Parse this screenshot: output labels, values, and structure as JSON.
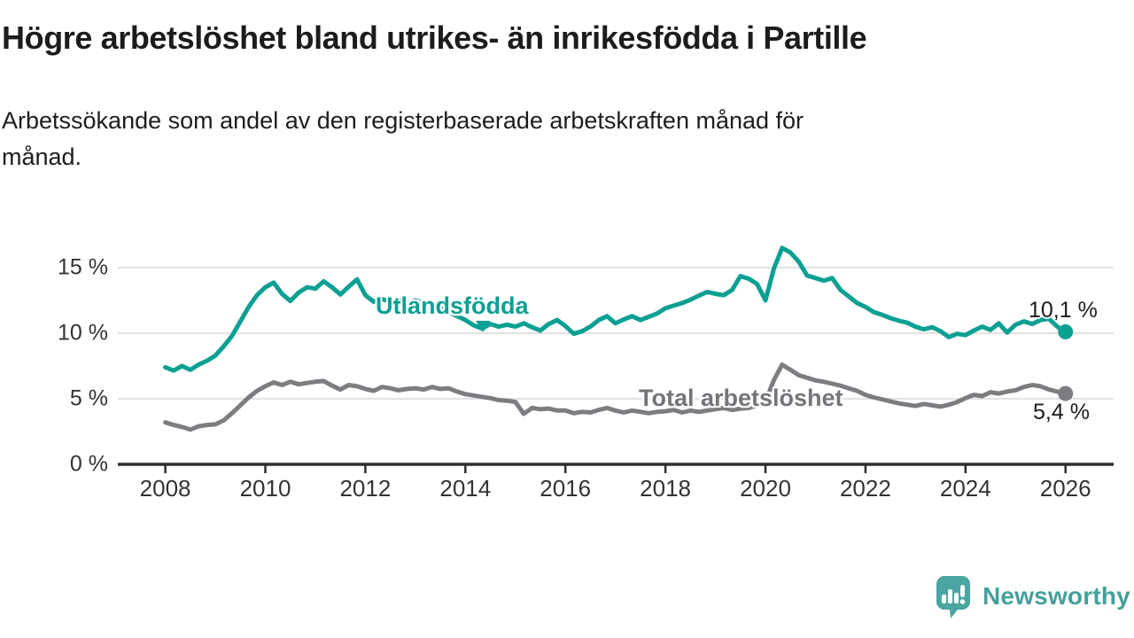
{
  "header": {
    "title": "Högre arbetslöshet bland utrikes- än inrikesfödda i Partille",
    "subtitle_line1": "Arbetssökande som andel av den registerbaserade arbetskraften månad för",
    "subtitle_line2": "månad."
  },
  "footer": {
    "brand": "Newsworthy"
  },
  "chart_data": {
    "type": "line",
    "title": "Högre arbetslöshet bland utrikes- än inrikesfödda i Partille",
    "subtitle": "Arbetssökande som andel av den registerbaserade arbetskraften månad för månad.",
    "x_start_year": 2008,
    "points_per_year": 6,
    "x_tick_years": [
      2008,
      2010,
      2012,
      2014,
      2016,
      2018,
      2020,
      2022,
      2024,
      2026
    ],
    "x_tick_labels": [
      "2008",
      "2010",
      "2012",
      "2014",
      "2016",
      "2018",
      "2020",
      "2022",
      "2024",
      "2026"
    ],
    "y_ticks": [
      0,
      5,
      10,
      15
    ],
    "y_tick_labels": [
      "0 %",
      "5 %",
      "10 %",
      "15 %"
    ],
    "ylim": [
      0,
      17.2
    ],
    "grid": true,
    "legend_position": "inline-labels",
    "axis_color": "#2d2d2d",
    "grid_color": "#d8d8d8",
    "tick_label_color": "#333333",
    "series": [
      {
        "name": "Utlandsfödda",
        "color": "#0ba093",
        "end_label": "10,1 %",
        "end_value": 10.1,
        "values": [
          7.4,
          7.15,
          7.5,
          7.2,
          7.6,
          7.9,
          8.3,
          9.0,
          9.8,
          10.9,
          12.0,
          12.9,
          13.5,
          13.85,
          13.0,
          12.45,
          13.1,
          13.5,
          13.4,
          13.95,
          13.5,
          12.95,
          13.55,
          14.1,
          12.9,
          12.4,
          12.6,
          12.4,
          12.55,
          12.3,
          12.5,
          12.3,
          12.15,
          11.9,
          11.6,
          11.3,
          11.0,
          10.6,
          10.35,
          10.7,
          10.5,
          10.65,
          10.5,
          10.75,
          10.45,
          10.2,
          10.7,
          11.0,
          10.55,
          9.95,
          10.15,
          10.5,
          11.0,
          11.3,
          10.75,
          11.05,
          11.3,
          11.0,
          11.25,
          11.5,
          11.9,
          12.1,
          12.3,
          12.55,
          12.85,
          13.15,
          13.0,
          12.9,
          13.3,
          14.35,
          14.15,
          13.75,
          12.5,
          14.9,
          16.5,
          16.15,
          15.45,
          14.4,
          14.2,
          14.0,
          14.2,
          13.3,
          12.8,
          12.3,
          12.0,
          11.6,
          11.4,
          11.15,
          10.95,
          10.8,
          10.5,
          10.3,
          10.45,
          10.15,
          9.7,
          9.95,
          9.85,
          10.2,
          10.5,
          10.25,
          10.75,
          10.05,
          10.65,
          10.9,
          10.7,
          11.0,
          11.1,
          10.5,
          10.1
        ]
      },
      {
        "name": "Total arbetslöshet",
        "color": "#7e7c81",
        "end_label": "5,4 %",
        "end_value": 5.4,
        "values": [
          3.2,
          3.0,
          2.85,
          2.65,
          2.9,
          3.0,
          3.05,
          3.35,
          3.9,
          4.5,
          5.1,
          5.6,
          5.95,
          6.25,
          6.05,
          6.3,
          6.1,
          6.2,
          6.3,
          6.35,
          6.0,
          5.7,
          6.05,
          5.95,
          5.75,
          5.6,
          5.9,
          5.8,
          5.65,
          5.75,
          5.8,
          5.7,
          5.9,
          5.75,
          5.8,
          5.55,
          5.35,
          5.25,
          5.15,
          5.05,
          4.9,
          4.85,
          4.75,
          3.85,
          4.3,
          4.2,
          4.25,
          4.1,
          4.1,
          3.9,
          4.0,
          3.95,
          4.15,
          4.3,
          4.1,
          3.95,
          4.1,
          4.0,
          3.9,
          4.0,
          4.05,
          4.15,
          3.95,
          4.1,
          4.0,
          4.1,
          4.2,
          4.3,
          4.15,
          4.25,
          4.3,
          4.5,
          4.8,
          6.4,
          7.6,
          7.2,
          6.8,
          6.6,
          6.4,
          6.3,
          6.15,
          6.0,
          5.8,
          5.6,
          5.3,
          5.1,
          4.95,
          4.8,
          4.65,
          4.55,
          4.45,
          4.6,
          4.5,
          4.4,
          4.55,
          4.75,
          5.05,
          5.3,
          5.2,
          5.5,
          5.4,
          5.55,
          5.65,
          5.9,
          6.05,
          5.95,
          5.7,
          5.55,
          5.4
        ]
      }
    ]
  }
}
